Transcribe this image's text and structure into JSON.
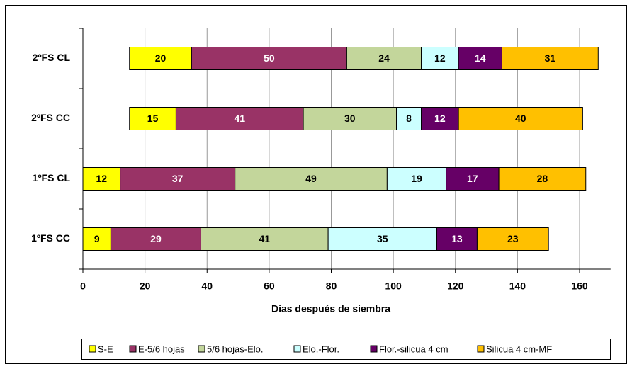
{
  "chart_data": {
    "type": "stacked-barh",
    "categories": [
      "1ºFS CC",
      "1ºFS CL",
      "2ºFS CC",
      "2ºFS CL"
    ],
    "start": [
      0,
      0,
      15,
      15
    ],
    "series": [
      {
        "name": "S-E",
        "color": "#ffff00",
        "values": [
          9,
          12,
          15,
          20
        ]
      },
      {
        "name": "E-5/6 hojas",
        "color": "#993366",
        "values": [
          29,
          37,
          41,
          50
        ]
      },
      {
        "name": "5/6 hojas-Elo.",
        "color": "#c3d69b",
        "values": [
          41,
          49,
          30,
          24
        ]
      },
      {
        "name": "Elo.-Flor.",
        "color": "#ccffff",
        "values": [
          35,
          19,
          8,
          12
        ]
      },
      {
        "name": "Flor.-silicua 4 cm",
        "color": "#660066",
        "values": [
          13,
          17,
          12,
          14
        ]
      },
      {
        "name": "Silicua 4 cm-MF",
        "color": "#ffc000",
        "values": [
          23,
          28,
          40,
          31
        ]
      }
    ],
    "x_label": "Dias después de siembra",
    "xlim": [
      0,
      170
    ],
    "xticks": [
      0,
      20,
      40,
      60,
      80,
      100,
      120,
      140,
      160
    ],
    "grid": true,
    "legend": "bottom"
  }
}
